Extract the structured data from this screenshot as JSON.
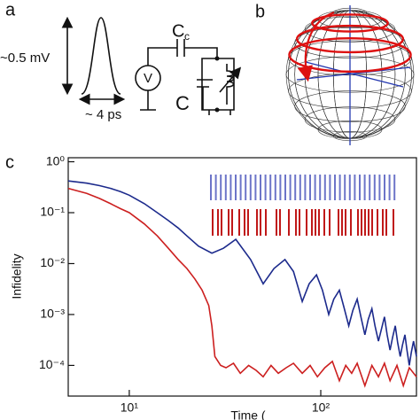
{
  "panels": {
    "a": "a",
    "b": "b",
    "c": "c"
  },
  "diagram": {
    "amplitude": "~0.5 mV",
    "width": "~ 4 ps",
    "meter": "V",
    "coupling": "C",
    "coupling_sub": "c",
    "capacitor": "C"
  },
  "chart_data": {
    "type": "line",
    "xlabel": "Time (",
    "ylabel": "Infidelity",
    "xlog": true,
    "ylog": true,
    "xlim": [
      4.8,
      316
    ],
    "ylim": [
      2.5e-05,
      1.2
    ],
    "xticks": [
      {
        "value": 10,
        "label": "10¹"
      },
      {
        "value": 100,
        "label": "10²"
      }
    ],
    "yticks": [
      {
        "value": 1,
        "label": "10⁰"
      },
      {
        "value": 0.1,
        "label": "10⁻¹"
      },
      {
        "value": 0.01,
        "label": "10⁻²"
      },
      {
        "value": 0.001,
        "label": "10⁻³"
      },
      {
        "value": 0.0001,
        "label": "10⁻⁴"
      }
    ],
    "series": [
      {
        "color": "#1c2a8c",
        "x": [
          4.8,
          6,
          7,
          8,
          9,
          10,
          12,
          14,
          16,
          18,
          20,
          23,
          27,
          31,
          36,
          43,
          50,
          57,
          65,
          72,
          80,
          87,
          95,
          102,
          110,
          117,
          125,
          132,
          140,
          147,
          155,
          162,
          170,
          177,
          185,
          192,
          200,
          207,
          215,
          222,
          230,
          237,
          245,
          252,
          260,
          267,
          275,
          282,
          290,
          297,
          305,
          316
        ],
        "values": [
          0.42,
          0.38,
          0.34,
          0.3,
          0.26,
          0.22,
          0.15,
          0.1,
          0.07,
          0.05,
          0.035,
          0.022,
          0.016,
          0.02,
          0.03,
          0.012,
          0.004,
          0.008,
          0.012,
          0.007,
          0.0018,
          0.004,
          0.006,
          0.003,
          0.001,
          0.002,
          0.003,
          0.0014,
          0.0006,
          0.0012,
          0.002,
          0.0009,
          0.0004,
          0.0008,
          0.0013,
          0.0006,
          0.0003,
          0.0005,
          0.0009,
          0.0004,
          0.0002,
          0.00035,
          0.0006,
          0.00028,
          0.00015,
          0.00025,
          0.0004,
          0.0002,
          0.0001,
          0.00018,
          0.0003,
          0.00015
        ]
      },
      {
        "color": "#cc1f1f",
        "x": [
          4.8,
          6,
          7,
          8,
          9,
          10,
          12,
          14,
          16,
          18,
          20,
          22,
          24,
          26,
          27,
          28,
          30,
          32,
          35,
          38,
          42,
          46,
          50,
          55,
          60,
          66,
          72,
          80,
          88,
          96,
          105,
          115,
          125,
          135,
          145,
          155,
          170,
          185,
          200,
          215,
          230,
          250,
          270,
          290,
          316
        ],
        "values": [
          0.3,
          0.24,
          0.19,
          0.15,
          0.12,
          0.1,
          0.06,
          0.035,
          0.02,
          0.012,
          0.008,
          0.005,
          0.003,
          0.0015,
          0.0006,
          0.00015,
          0.0001,
          9e-05,
          0.00011,
          7e-05,
          0.0001,
          8e-05,
          6e-05,
          0.0001,
          7e-05,
          9e-05,
          0.00011,
          7e-05,
          0.0001,
          6e-05,
          9e-05,
          0.00012,
          5e-05,
          0.0001,
          7e-05,
          0.00011,
          4e-05,
          0.0001,
          6e-05,
          0.00011,
          5e-05,
          0.0001,
          4e-05,
          9e-05,
          6e-05
        ]
      }
    ]
  }
}
